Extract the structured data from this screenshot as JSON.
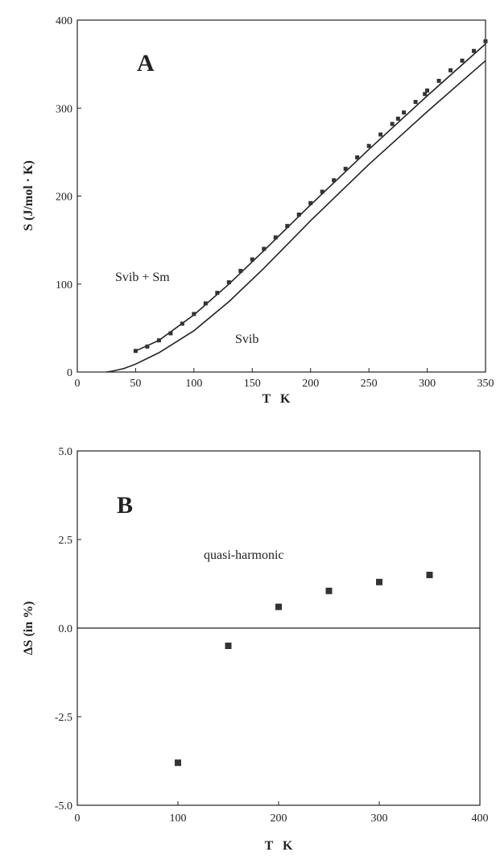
{
  "chart_data": [
    {
      "type": "scatter",
      "panel_letter": "A",
      "title": "",
      "xlabel": "T K",
      "ylabel": "S (J/mol · K)",
      "xlim": [
        0,
        350
      ],
      "ylim": [
        0,
        400
      ],
      "x_ticks": [
        0,
        50,
        100,
        150,
        200,
        250,
        300,
        350
      ],
      "y_ticks": [
        0,
        100,
        200,
        300,
        400
      ],
      "grid": false,
      "annotations": [
        "Svib + Sm",
        "Svib"
      ],
      "series": [
        {
          "kind": "points",
          "x": [
            50,
            60,
            70,
            80,
            90,
            100,
            110,
            120,
            130,
            140,
            150,
            160,
            170,
            180,
            190,
            200,
            210,
            220,
            230,
            240,
            250,
            260,
            270,
            275,
            280,
            290,
            298,
            300,
            310,
            320,
            330,
            340,
            350
          ],
          "y": [
            24,
            29,
            36,
            44,
            55,
            66,
            78,
            90,
            102,
            115,
            128,
            140,
            153,
            166,
            179,
            192,
            205,
            218,
            231,
            244,
            257,
            270,
            282,
            288,
            295,
            307,
            316,
            320,
            331,
            343,
            354,
            365,
            376
          ]
        },
        {
          "kind": "line",
          "x": [
            50,
            70,
            100,
            130,
            160,
            200,
            250,
            300,
            350
          ],
          "y": [
            24,
            36,
            65,
            100,
            138,
            190,
            253,
            314,
            373
          ]
        },
        {
          "kind": "line",
          "x": [
            25,
            30,
            40,
            50,
            70,
            100,
            130,
            160,
            200,
            250,
            300,
            350
          ],
          "y": [
            0,
            1,
            4,
            9,
            22,
            47,
            80,
            118,
            172,
            236,
            296,
            354
          ]
        }
      ]
    },
    {
      "type": "scatter",
      "panel_letter": "B",
      "title": "",
      "xlabel": "T K",
      "ylabel": "ΔS (in %)",
      "xlim": [
        0,
        400
      ],
      "ylim": [
        -5.0,
        5.0
      ],
      "x_ticks": [
        0,
        100,
        200,
        300,
        400
      ],
      "y_ticks": [
        5.0,
        2.5,
        0.0,
        -2.5,
        -5.0
      ],
      "y_tick_labels": [
        "5.0",
        "2.5",
        "0.0",
        "-2.5",
        "-5.0"
      ],
      "zero_line": true,
      "grid": false,
      "annotations": [
        "quasi-harmonic"
      ],
      "series": [
        {
          "kind": "points",
          "x": [
            100,
            150,
            200,
            250,
            300,
            350
          ],
          "y": [
            -3.8,
            -0.5,
            0.6,
            1.05,
            1.3,
            1.5
          ]
        }
      ]
    }
  ]
}
